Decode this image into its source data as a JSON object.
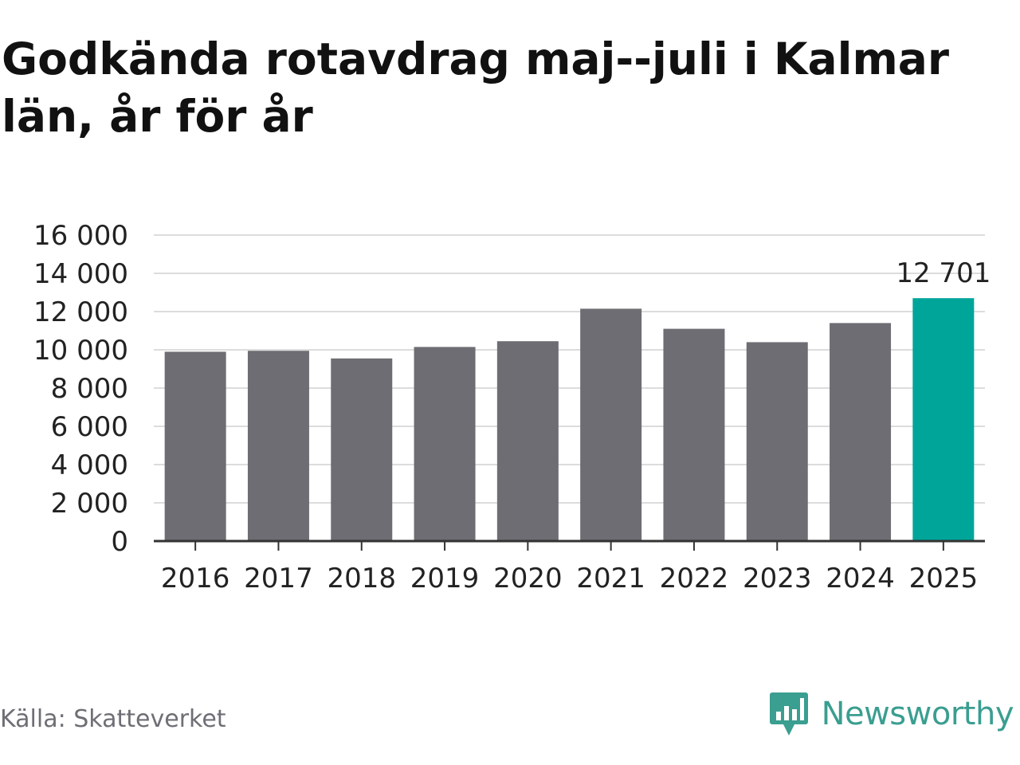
{
  "header": {
    "title": "Godkända rotavdrag maj--juli i Kalmar län, år för år"
  },
  "footer": {
    "source": "Källa: Skatteverket",
    "brand": "Newsworthy"
  },
  "colors": {
    "bar": "#6e6d73",
    "highlight": "#00a59a",
    "brand": "#3a9e90",
    "grid": "#dcdcdc"
  },
  "chart_data": {
    "type": "bar",
    "categories": [
      "2016",
      "2017",
      "2018",
      "2019",
      "2020",
      "2021",
      "2022",
      "2023",
      "2024",
      "2025"
    ],
    "values": [
      9900,
      9950,
      9550,
      10150,
      10450,
      12150,
      11100,
      10400,
      11400,
      12701
    ],
    "highlight_index": 9,
    "data_labels": [
      {
        "index": 9,
        "text": "12 701"
      }
    ],
    "yticks": [
      "0",
      "2 000",
      "4 000",
      "6 000",
      "8 000",
      "10 000",
      "12 000",
      "14 000",
      "16 000"
    ],
    "ylim": [
      0,
      16000
    ],
    "grid": true,
    "title": "Godkända rotavdrag maj--juli i Kalmar län, år för år",
    "xlabel": "",
    "ylabel": ""
  }
}
